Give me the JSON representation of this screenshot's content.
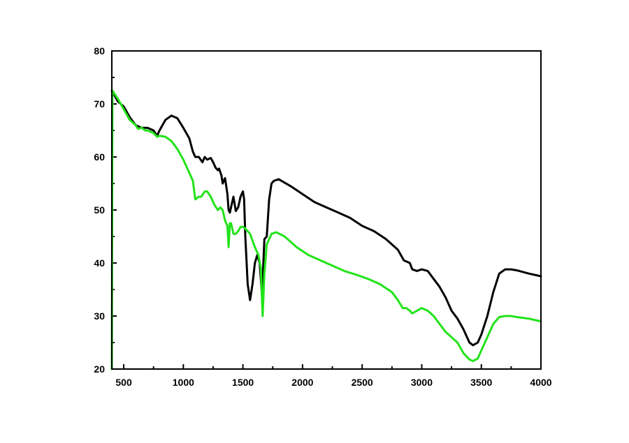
{
  "chart_data": {
    "type": "line",
    "title": "",
    "xlabel": "",
    "ylabel": "",
    "xlim": [
      400,
      4000
    ],
    "ylim": [
      20,
      80
    ],
    "grid": false,
    "x_ticks": [
      500,
      1000,
      1500,
      2000,
      2500,
      3000,
      3500,
      4000
    ],
    "x_minor_step": 250,
    "y_ticks": [
      20,
      30,
      40,
      50,
      60,
      70,
      80
    ],
    "y_minor_step": 5,
    "series": [
      {
        "color": "#000000",
        "points": [
          [
            400,
            72.5
          ],
          [
            450,
            70.5
          ],
          [
            500,
            69.5
          ],
          [
            550,
            67.5
          ],
          [
            600,
            66.0
          ],
          [
            650,
            65.5
          ],
          [
            700,
            65.5
          ],
          [
            750,
            65.0
          ],
          [
            780,
            64.0
          ],
          [
            800,
            65.0
          ],
          [
            850,
            67.0
          ],
          [
            900,
            67.8
          ],
          [
            950,
            67.3
          ],
          [
            1000,
            65.5
          ],
          [
            1050,
            63.5
          ],
          [
            1080,
            61.0
          ],
          [
            1100,
            60.0
          ],
          [
            1130,
            60.0
          ],
          [
            1160,
            59.0
          ],
          [
            1180,
            60.0
          ],
          [
            1200,
            59.5
          ],
          [
            1230,
            59.8
          ],
          [
            1250,
            59.0
          ],
          [
            1270,
            58.0
          ],
          [
            1290,
            57.5
          ],
          [
            1300,
            57.8
          ],
          [
            1320,
            56.5
          ],
          [
            1330,
            55.0
          ],
          [
            1350,
            56.0
          ],
          [
            1370,
            53.0
          ],
          [
            1380,
            50.0
          ],
          [
            1390,
            49.5
          ],
          [
            1400,
            50.5
          ],
          [
            1420,
            52.5
          ],
          [
            1440,
            49.8
          ],
          [
            1460,
            50.5
          ],
          [
            1480,
            52.5
          ],
          [
            1500,
            53.5
          ],
          [
            1510,
            52.0
          ],
          [
            1520,
            45.0
          ],
          [
            1540,
            36.0
          ],
          [
            1560,
            33.0
          ],
          [
            1580,
            36.0
          ],
          [
            1600,
            40.0
          ],
          [
            1620,
            41.5
          ],
          [
            1640,
            40.0
          ],
          [
            1660,
            34.0
          ],
          [
            1680,
            44.5
          ],
          [
            1700,
            45.0
          ],
          [
            1720,
            52.0
          ],
          [
            1740,
            55.0
          ],
          [
            1760,
            55.5
          ],
          [
            1800,
            55.8
          ],
          [
            1900,
            54.5
          ],
          [
            2000,
            53.0
          ],
          [
            2100,
            51.5
          ],
          [
            2200,
            50.5
          ],
          [
            2300,
            49.5
          ],
          [
            2400,
            48.5
          ],
          [
            2500,
            47.0
          ],
          [
            2600,
            46.0
          ],
          [
            2700,
            44.5
          ],
          [
            2800,
            42.5
          ],
          [
            2850,
            40.5
          ],
          [
            2900,
            40.0
          ],
          [
            2920,
            38.8
          ],
          [
            2960,
            38.5
          ],
          [
            3000,
            38.8
          ],
          [
            3050,
            38.5
          ],
          [
            3100,
            37.0
          ],
          [
            3150,
            35.5
          ],
          [
            3200,
            33.5
          ],
          [
            3250,
            31.0
          ],
          [
            3300,
            29.5
          ],
          [
            3350,
            27.5
          ],
          [
            3400,
            25.0
          ],
          [
            3430,
            24.5
          ],
          [
            3470,
            25.0
          ],
          [
            3500,
            26.5
          ],
          [
            3550,
            30.0
          ],
          [
            3600,
            34.5
          ],
          [
            3650,
            38.0
          ],
          [
            3700,
            38.8
          ],
          [
            3750,
            38.8
          ],
          [
            3800,
            38.6
          ],
          [
            3900,
            38.0
          ],
          [
            4000,
            37.5
          ]
        ]
      },
      {
        "color": "#22e31a",
        "points": [
          [
            400,
            20.0
          ],
          [
            405,
            72.5
          ],
          [
            450,
            71.0
          ],
          [
            500,
            69.0
          ],
          [
            550,
            67.0
          ],
          [
            600,
            66.0
          ],
          [
            620,
            65.3
          ],
          [
            650,
            65.5
          ],
          [
            680,
            65.0
          ],
          [
            700,
            65.0
          ],
          [
            750,
            64.5
          ],
          [
            780,
            63.8
          ],
          [
            800,
            64.0
          ],
          [
            850,
            63.8
          ],
          [
            900,
            63.0
          ],
          [
            950,
            61.5
          ],
          [
            1000,
            59.5
          ],
          [
            1050,
            57.0
          ],
          [
            1080,
            55.5
          ],
          [
            1100,
            52.0
          ],
          [
            1130,
            52.5
          ],
          [
            1150,
            52.5
          ],
          [
            1180,
            53.5
          ],
          [
            1200,
            53.5
          ],
          [
            1230,
            52.5
          ],
          [
            1260,
            51.0
          ],
          [
            1290,
            50.0
          ],
          [
            1310,
            50.5
          ],
          [
            1330,
            50.0
          ],
          [
            1350,
            48.0
          ],
          [
            1370,
            47.0
          ],
          [
            1380,
            43.0
          ],
          [
            1390,
            47.5
          ],
          [
            1400,
            47.5
          ],
          [
            1420,
            45.5
          ],
          [
            1440,
            45.5
          ],
          [
            1460,
            46.0
          ],
          [
            1480,
            46.8
          ],
          [
            1500,
            46.8
          ],
          [
            1520,
            46.5
          ],
          [
            1560,
            45.5
          ],
          [
            1600,
            43.0
          ],
          [
            1630,
            41.5
          ],
          [
            1650,
            39.0
          ],
          [
            1665,
            30.0
          ],
          [
            1680,
            38.0
          ],
          [
            1700,
            43.5
          ],
          [
            1740,
            45.5
          ],
          [
            1780,
            45.8
          ],
          [
            1850,
            45.0
          ],
          [
            1950,
            43.0
          ],
          [
            2050,
            41.5
          ],
          [
            2150,
            40.5
          ],
          [
            2250,
            39.5
          ],
          [
            2350,
            38.5
          ],
          [
            2450,
            37.8
          ],
          [
            2550,
            37.0
          ],
          [
            2650,
            36.0
          ],
          [
            2750,
            34.5
          ],
          [
            2800,
            33.0
          ],
          [
            2840,
            31.5
          ],
          [
            2870,
            31.5
          ],
          [
            2900,
            31.0
          ],
          [
            2920,
            30.5
          ],
          [
            2960,
            31.0
          ],
          [
            3000,
            31.5
          ],
          [
            3050,
            31.0
          ],
          [
            3100,
            30.0
          ],
          [
            3150,
            28.5
          ],
          [
            3200,
            27.0
          ],
          [
            3250,
            26.0
          ],
          [
            3300,
            25.0
          ],
          [
            3350,
            23.0
          ],
          [
            3400,
            21.8
          ],
          [
            3430,
            21.5
          ],
          [
            3470,
            22.0
          ],
          [
            3500,
            23.5
          ],
          [
            3550,
            26.0
          ],
          [
            3600,
            28.5
          ],
          [
            3650,
            29.8
          ],
          [
            3700,
            30.0
          ],
          [
            3750,
            30.0
          ],
          [
            3800,
            29.8
          ],
          [
            3900,
            29.5
          ],
          [
            4000,
            29.0
          ]
        ]
      }
    ]
  }
}
